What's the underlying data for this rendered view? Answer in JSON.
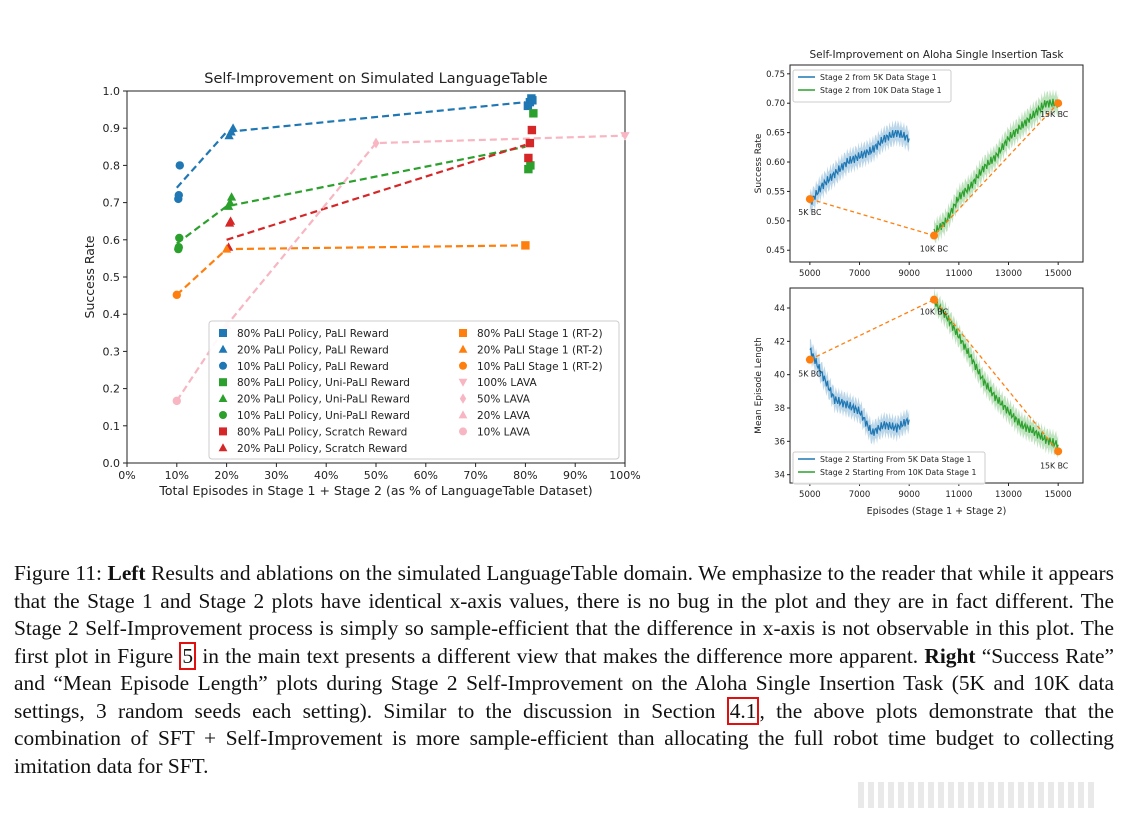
{
  "left_chart": {
    "title": "Self-Improvement on Simulated LanguageTable",
    "xlabel": "Total Episodes in Stage 1 + Stage 2 (as % of LanguageTable Dataset)",
    "ylabel": "Success Rate",
    "xticks": [
      "0%",
      "10%",
      "20%",
      "30%",
      "40%",
      "50%",
      "60%",
      "70%",
      "80%",
      "90%",
      "100%"
    ],
    "yticks": [
      "0.0",
      "0.1",
      "0.2",
      "0.3",
      "0.4",
      "0.5",
      "0.6",
      "0.7",
      "0.8",
      "0.9",
      "1.0"
    ],
    "legend_left": [
      {
        "label": "80% PaLI Policy, PaLI Reward",
        "color": "#1f77b4",
        "marker": "square"
      },
      {
        "label": "20% PaLI Policy, PaLI Reward",
        "color": "#1f77b4",
        "marker": "triangle-up"
      },
      {
        "label": "10% PaLI Policy, PaLI Reward",
        "color": "#1f77b4",
        "marker": "circle"
      },
      {
        "label": "80% PaLI Policy, Uni-PaLI Reward",
        "color": "#2ca02c",
        "marker": "square"
      },
      {
        "label": "20% PaLI Policy, Uni-PaLI Reward",
        "color": "#2ca02c",
        "marker": "triangle-up"
      },
      {
        "label": "10% PaLI Policy, Uni-PaLI Reward",
        "color": "#2ca02c",
        "marker": "circle"
      },
      {
        "label": "80% PaLI Policy, Scratch Reward",
        "color": "#d62728",
        "marker": "square"
      },
      {
        "label": "20% PaLI Policy, Scratch Reward",
        "color": "#d62728",
        "marker": "triangle-up"
      }
    ],
    "legend_right": [
      {
        "label": "80% PaLI Stage 1 (RT-2)",
        "color": "#ff7f0e",
        "marker": "square"
      },
      {
        "label": "20% PaLI Stage 1 (RT-2)",
        "color": "#ff7f0e",
        "marker": "triangle-up"
      },
      {
        "label": "10% PaLI Stage 1 (RT-2)",
        "color": "#ff7f0e",
        "marker": "circle"
      },
      {
        "label": "100% LAVA",
        "color": "#f7b6c2",
        "marker": "triangle-down"
      },
      {
        "label": "50% LAVA",
        "color": "#f7b6c2",
        "marker": "diamond"
      },
      {
        "label": "20% LAVA",
        "color": "#f7b6c2",
        "marker": "triangle-up"
      },
      {
        "label": "10% LAVA",
        "color": "#f7b6c2",
        "marker": "circle"
      }
    ]
  },
  "chart_data": [
    {
      "type": "scatter",
      "title": "Self-Improvement on Simulated LanguageTable",
      "xlabel": "Total Episodes in Stage 1 + Stage 2 (as % of LanguageTable Dataset)",
      "ylabel": "Success Rate",
      "xlim": [
        0,
        100
      ],
      "ylim": [
        0,
        1.0
      ],
      "legend_position": "lower-right",
      "series": [
        {
          "name": "80% PaLI Policy, PaLI Reward",
          "color": "#1f77b4",
          "marker": "square",
          "points": [
            [
              80.5,
              0.96
            ],
            [
              80.9,
              0.97
            ],
            [
              81.2,
              0.98
            ],
            [
              81.4,
              0.975
            ]
          ]
        },
        {
          "name": "20% PaLI Policy, PaLI Reward",
          "color": "#1f77b4",
          "marker": "triangle-up",
          "points": [
            [
              20.5,
              0.88
            ],
            [
              20.9,
              0.89
            ],
            [
              21.3,
              0.9
            ]
          ]
        },
        {
          "name": "10% PaLI Policy, PaLI Reward",
          "color": "#1f77b4",
          "marker": "circle",
          "points": [
            [
              10.3,
              0.71
            ],
            [
              10.4,
              0.72
            ],
            [
              10.6,
              0.8
            ]
          ]
        },
        {
          "name": "80% PaLI Policy, Uni-PaLI Reward",
          "color": "#2ca02c",
          "marker": "square",
          "points": [
            [
              80.6,
              0.79
            ],
            [
              81.0,
              0.8
            ],
            [
              81.6,
              0.94
            ]
          ]
        },
        {
          "name": "20% PaLI Policy, Uni-PaLI Reward",
          "color": "#2ca02c",
          "marker": "triangle-up",
          "points": [
            [
              20.4,
              0.69
            ],
            [
              20.7,
              0.7
            ],
            [
              21.0,
              0.715
            ]
          ]
        },
        {
          "name": "10% PaLI Policy, Uni-PaLI Reward",
          "color": "#2ca02c",
          "marker": "circle",
          "points": [
            [
              10.3,
              0.575
            ],
            [
              10.4,
              0.58
            ],
            [
              10.5,
              0.605
            ]
          ]
        },
        {
          "name": "80% PaLI Policy, Scratch Reward",
          "color": "#d62728",
          "marker": "square",
          "points": [
            [
              80.6,
              0.82
            ],
            [
              80.9,
              0.86
            ],
            [
              81.3,
              0.895
            ]
          ]
        },
        {
          "name": "20% PaLI Policy, Scratch Reward",
          "color": "#d62728",
          "marker": "triangle-up",
          "points": [
            [
              20.4,
              0.58
            ],
            [
              20.6,
              0.645
            ],
            [
              20.8,
              0.65
            ]
          ]
        },
        {
          "name": "80% PaLI Stage 1 (RT-2)",
          "color": "#ff7f0e",
          "marker": "square",
          "points": [
            [
              80.0,
              0.585
            ]
          ]
        },
        {
          "name": "20% PaLI Stage 1 (RT-2)",
          "color": "#ff7f0e",
          "marker": "triangle-up",
          "points": [
            [
              20.0,
              0.575
            ]
          ]
        },
        {
          "name": "10% PaLI Stage 1 (RT-2)",
          "color": "#ff7f0e",
          "marker": "circle",
          "points": [
            [
              10.0,
              0.452
            ]
          ]
        },
        {
          "name": "100% LAVA",
          "color": "#f7b6c2",
          "marker": "triangle-down",
          "points": [
            [
              100.0,
              0.88
            ]
          ]
        },
        {
          "name": "50% LAVA",
          "color": "#f7b6c2",
          "marker": "diamond",
          "points": [
            [
              50.0,
              0.86
            ]
          ]
        },
        {
          "name": "20% LAVA",
          "color": "#f7b6c2",
          "marker": "triangle-up",
          "points": [
            [
              20.0,
              0.37
            ]
          ]
        },
        {
          "name": "10% LAVA",
          "color": "#f7b6c2",
          "marker": "circle",
          "points": [
            [
              10.0,
              0.167
            ]
          ]
        }
      ],
      "dashed_lines": [
        {
          "color": "#1f77b4",
          "points": [
            [
              10,
              0.74
            ],
            [
              20,
              0.89
            ],
            [
              80,
              0.97
            ]
          ]
        },
        {
          "color": "#2ca02c",
          "points": [
            [
              10,
              0.59
            ],
            [
              20,
              0.69
            ],
            [
              80,
              0.85
            ]
          ]
        },
        {
          "color": "#d62728",
          "points": [
            [
              20,
              0.6
            ],
            [
              80,
              0.855
            ]
          ]
        },
        {
          "color": "#ff7f0e",
          "points": [
            [
              10,
              0.452
            ],
            [
              20,
              0.575
            ],
            [
              80,
              0.585
            ]
          ]
        },
        {
          "color": "#f7b6c2",
          "points": [
            [
              10,
              0.167
            ],
            [
              20,
              0.37
            ],
            [
              50,
              0.86
            ],
            [
              100,
              0.88
            ]
          ]
        }
      ]
    },
    {
      "type": "line",
      "title": "Self-Improvement on Aloha Single Insertion Task",
      "xlabel": "",
      "ylabel": "Success Rate",
      "xlim": [
        4200,
        16000
      ],
      "ylim": [
        0.43,
        0.765
      ],
      "xticks": [
        5000,
        7000,
        9000,
        11000,
        13000,
        15000
      ],
      "yticks": [
        0.45,
        0.5,
        0.55,
        0.6,
        0.65,
        0.7,
        0.75
      ],
      "legend_position": "top-left",
      "series": [
        {
          "name": "Stage 2 from 5K Data Stage 1",
          "color": "#1f77b4",
          "x": [
            5000,
            5500,
            6000,
            6500,
            7000,
            7500,
            8000,
            8500,
            9000
          ],
          "y": [
            0.53,
            0.56,
            0.58,
            0.6,
            0.61,
            0.62,
            0.64,
            0.65,
            0.64
          ]
        },
        {
          "name": "Stage 2 from 10K Data Stage 1",
          "color": "#2ca02c",
          "x": [
            10000,
            10500,
            11000,
            11500,
            12000,
            12500,
            13000,
            13500,
            14000,
            14500,
            15000
          ],
          "y": [
            0.48,
            0.5,
            0.54,
            0.56,
            0.59,
            0.61,
            0.64,
            0.66,
            0.68,
            0.7,
            0.7
          ]
        }
      ],
      "baseline_points": [
        {
          "label": "5K BC",
          "x": 5000,
          "y": 0.537
        },
        {
          "label": "10K BC",
          "x": 10000,
          "y": 0.475
        },
        {
          "label": "15K BC",
          "x": 15000,
          "y": 0.7
        }
      ]
    },
    {
      "type": "line",
      "title": "",
      "xlabel": "Episodes (Stage 1 + Stage 2)",
      "ylabel": "Mean Episode Length",
      "xlim": [
        4200,
        16000
      ],
      "ylim": [
        33.5,
        45.2
      ],
      "xticks": [
        5000,
        7000,
        9000,
        11000,
        13000,
        15000
      ],
      "yticks": [
        34,
        36,
        38,
        40,
        42,
        44
      ],
      "legend_position": "lower-left",
      "series": [
        {
          "name": "Stage 2 Starting From 5K Data Stage 1",
          "color": "#1f77b4",
          "x": [
            5000,
            5500,
            6000,
            6500,
            7000,
            7500,
            8000,
            8500,
            9000
          ],
          "y": [
            41.5,
            40.0,
            38.5,
            38.2,
            37.8,
            36.5,
            37.0,
            36.8,
            37.3
          ]
        },
        {
          "name": "Stage 2 Starting From 10K Data Stage 1",
          "color": "#2ca02c",
          "x": [
            10000,
            10500,
            11000,
            11500,
            12000,
            12500,
            13000,
            13500,
            14000,
            14500,
            15000
          ],
          "y": [
            44.4,
            43.5,
            42.3,
            41.0,
            39.6,
            38.6,
            37.8,
            37.0,
            36.6,
            36.1,
            35.8
          ]
        }
      ],
      "baseline_points": [
        {
          "label": "5K BC",
          "x": 5000,
          "y": 40.9
        },
        {
          "label": "10K BC",
          "x": 10000,
          "y": 44.5
        },
        {
          "label": "15K BC",
          "x": 15000,
          "y": 35.4
        }
      ]
    }
  ],
  "right_top_chart": {
    "title": "Self-Improvement on Aloha Single Insertion Task",
    "ylabel": "Success Rate",
    "xticks": [
      "5000",
      "7000",
      "9000",
      "11000",
      "13000",
      "15000"
    ],
    "yticks": [
      "0.45",
      "0.50",
      "0.55",
      "0.60",
      "0.65",
      "0.70",
      "0.75"
    ],
    "legend": [
      "Stage 2 from 5K Data Stage 1",
      "Stage 2 from 10K Data Stage 1"
    ],
    "annotations": [
      "5K BC",
      "10K BC",
      "15K BC"
    ]
  },
  "right_bottom_chart": {
    "xlabel": "Episodes (Stage 1 + Stage 2)",
    "ylabel": "Mean Episode Length",
    "xticks": [
      "5000",
      "7000",
      "9000",
      "11000",
      "13000",
      "15000"
    ],
    "yticks": [
      "34",
      "36",
      "38",
      "40",
      "42",
      "44"
    ],
    "legend": [
      "Stage 2 Starting From 5K Data Stage 1",
      "Stage 2 Starting From 10K Data Stage 1"
    ],
    "annotations": [
      "5K BC",
      "10K BC",
      "15K BC"
    ]
  },
  "caption": {
    "figure_label": "Figure 11:",
    "left_bold": "Left",
    "part1": " Results and ablations on the simulated LanguageTable domain. We emphasize to the reader that while it appears that the Stage 1 and Stage 2 plots have identical x-axis values, there is no bug in the plot and they are in fact different. The Stage 2 Self-Improvement process is simply so sample-efficient that the difference in x-axis is not observable in this plot. The first plot in Figure ",
    "ref_figure": "5",
    "part2": " in the main text presents a different view that makes the difference more apparent. ",
    "right_bold": "Right",
    "part3": " “Success Rate” and “Mean Episode Length” plots during Stage 2 Self-Improvement on the Aloha Single Insertion Task (5K and 10K data settings, 3 random seeds each setting). Similar to the discussion in Section ",
    "ref_section": "4.1",
    "part4": ", the above plots demonstrate that the combination of SFT + Self-Improvement is more sample-efficient than allocating the full robot time budget to collecting imitation data for SFT."
  }
}
